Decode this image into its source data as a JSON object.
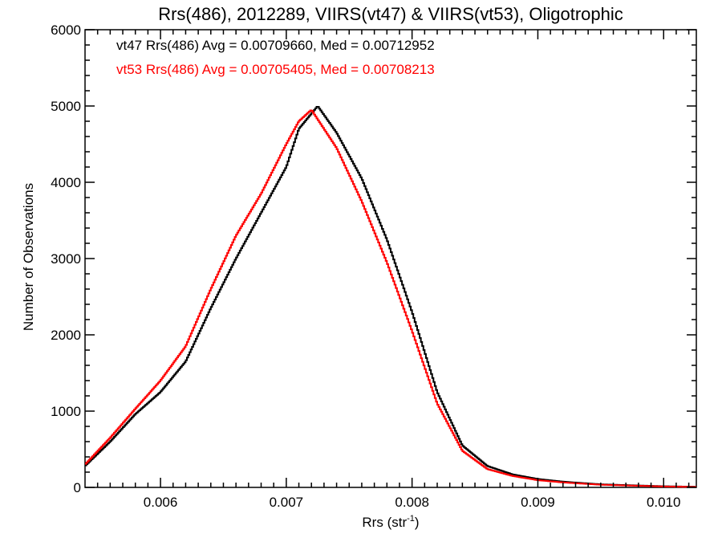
{
  "chart_data": {
    "type": "line",
    "title": "Rrs(486), 2012289, VIIRS(vt47) & VIIRS(vt53), Oligotrophic",
    "xlabel": "Rrs (str",
    "xlabel_sup": "-1",
    "xlabel_close": ")",
    "ylabel": "Number of Observations",
    "xlim": [
      0.0054,
      0.01026
    ],
    "ylim": [
      0,
      6000
    ],
    "grid": false,
    "x_ticks": [
      {
        "value": 0.006,
        "label": "0.006"
      },
      {
        "value": 0.007,
        "label": "0.007"
      },
      {
        "value": 0.008,
        "label": "0.008"
      },
      {
        "value": 0.009,
        "label": "0.009"
      },
      {
        "value": 0.01,
        "label": "0.010"
      }
    ],
    "y_ticks": [
      {
        "value": 0,
        "label": "0"
      },
      {
        "value": 1000,
        "label": "1000"
      },
      {
        "value": 2000,
        "label": "2000"
      },
      {
        "value": 3000,
        "label": "3000"
      },
      {
        "value": 4000,
        "label": "4000"
      },
      {
        "value": 5000,
        "label": "5000"
      },
      {
        "value": 6000,
        "label": "6000"
      }
    ],
    "annotations": [
      {
        "text": "vt47 Rrs(486) Avg = 0.00709660, Med = 0.00712952",
        "color": "#000000"
      },
      {
        "text": "vt53 Rrs(486) Avg = 0.00705405, Med = 0.00708213",
        "color": "#ff0000"
      }
    ],
    "series": [
      {
        "color": "#000000",
        "step": true,
        "x": [
          0.0054,
          0.0056,
          0.0058,
          0.006,
          0.0062,
          0.0064,
          0.0066,
          0.0068,
          0.007,
          0.0071,
          0.00725,
          0.0074,
          0.0076,
          0.0078,
          0.008,
          0.0082,
          0.0084,
          0.0086,
          0.0088,
          0.009,
          0.0092,
          0.0095,
          0.01,
          0.01026
        ],
        "y": [
          280,
          600,
          960,
          1250,
          1650,
          2350,
          3000,
          3600,
          4200,
          4700,
          5000,
          4650,
          4050,
          3250,
          2300,
          1250,
          550,
          280,
          170,
          110,
          75,
          40,
          15,
          8
        ]
      },
      {
        "color": "#ff0000",
        "step": true,
        "x": [
          0.0054,
          0.0056,
          0.0058,
          0.006,
          0.0062,
          0.0064,
          0.0066,
          0.0068,
          0.007,
          0.0071,
          0.0072,
          0.0074,
          0.0076,
          0.0078,
          0.008,
          0.0082,
          0.0084,
          0.0086,
          0.0088,
          0.009,
          0.0092,
          0.0095,
          0.01,
          0.01026
        ],
        "y": [
          300,
          650,
          1030,
          1400,
          1850,
          2600,
          3300,
          3850,
          4500,
          4800,
          4950,
          4450,
          3750,
          2950,
          2050,
          1100,
          480,
          240,
          150,
          95,
          65,
          35,
          12,
          6
        ]
      }
    ]
  }
}
